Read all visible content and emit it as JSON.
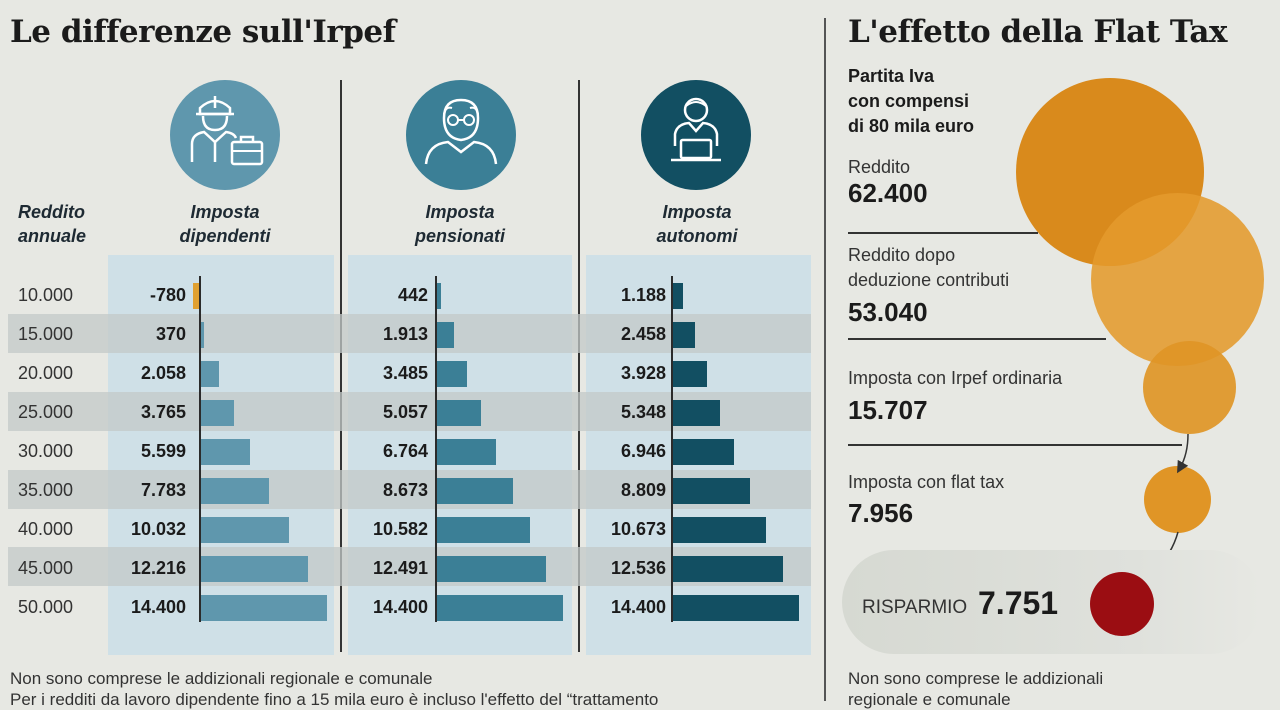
{
  "left": {
    "title": "Le differenze sull'Irpef",
    "row_header": "Reddito\nannuale",
    "footnote": [
      "Non sono comprese le addizionali regionale e comunale",
      "Per i redditi da lavoro dipendente fino a 15 mila euro è incluso l'effetto del “trattamento"
    ]
  },
  "right": {
    "title": "L'effetto della Flat Tax",
    "subtitle": "Partita Iva\ncon compensi\ndi 80 mila euro",
    "items": [
      {
        "label": "Reddito",
        "value": "62.400"
      },
      {
        "label": "Reddito dopo\ndeduzione contributi",
        "value": "53.040"
      },
      {
        "label": "Imposta con Irpef ordinaria",
        "value": "15.707"
      },
      {
        "label": "Imposta con flat tax",
        "value": "7.956"
      }
    ],
    "saving_label": "RISPARMIO",
    "saving_value": "7.751",
    "footnote": [
      "Non sono comprese le addizionali",
      "regionale e comunale"
    ]
  },
  "colors": {
    "dipendenti": "#5f97ad",
    "pensionati": "#3b7f96",
    "autonomi": "#124f62",
    "negative": "#e0a030",
    "orange": "#d98a1c",
    "red": "#9b0d12"
  },
  "chart_data": [
    {
      "type": "bar",
      "orientation": "horizontal",
      "title": "Le differenze sull'Irpef",
      "xlabel": "Reddito annuale",
      "categories": [
        "10.000",
        "15.000",
        "20.000",
        "25.000",
        "30.000",
        "35.000",
        "40.000",
        "45.000",
        "50.000"
      ],
      "xlim": [
        -780,
        14400
      ],
      "series": [
        {
          "name": "Imposta dipendenti",
          "values": [
            -780,
            370,
            2058,
            3765,
            5599,
            7783,
            10032,
            12216,
            14400
          ],
          "labels": [
            "-780",
            "370",
            "2.058",
            "3.765",
            "5.599",
            "7.783",
            "10.032",
            "12.216",
            "14.400"
          ]
        },
        {
          "name": "Imposta pensionati",
          "values": [
            442,
            1913,
            3485,
            5057,
            6764,
            8673,
            10582,
            12491,
            14400
          ],
          "labels": [
            "442",
            "1.913",
            "3.485",
            "5.057",
            "6.764",
            "8.673",
            "10.582",
            "12.491",
            "14.400"
          ]
        },
        {
          "name": "Imposta autonomi",
          "values": [
            1188,
            2458,
            3928,
            5348,
            6946,
            8809,
            10673,
            12536,
            14400
          ],
          "labels": [
            "1.188",
            "2.458",
            "3.928",
            "5.348",
            "6.946",
            "8.809",
            "10.673",
            "12.536",
            "14.400"
          ]
        }
      ]
    },
    {
      "type": "bubble",
      "title": "L'effetto della Flat Tax",
      "categories": [
        "Reddito",
        "Reddito dopo deduzione contributi",
        "Imposta con Irpef ordinaria",
        "Imposta con flat tax",
        "Risparmio"
      ],
      "values": [
        62400,
        53040,
        15707,
        7956,
        7751
      ]
    }
  ]
}
